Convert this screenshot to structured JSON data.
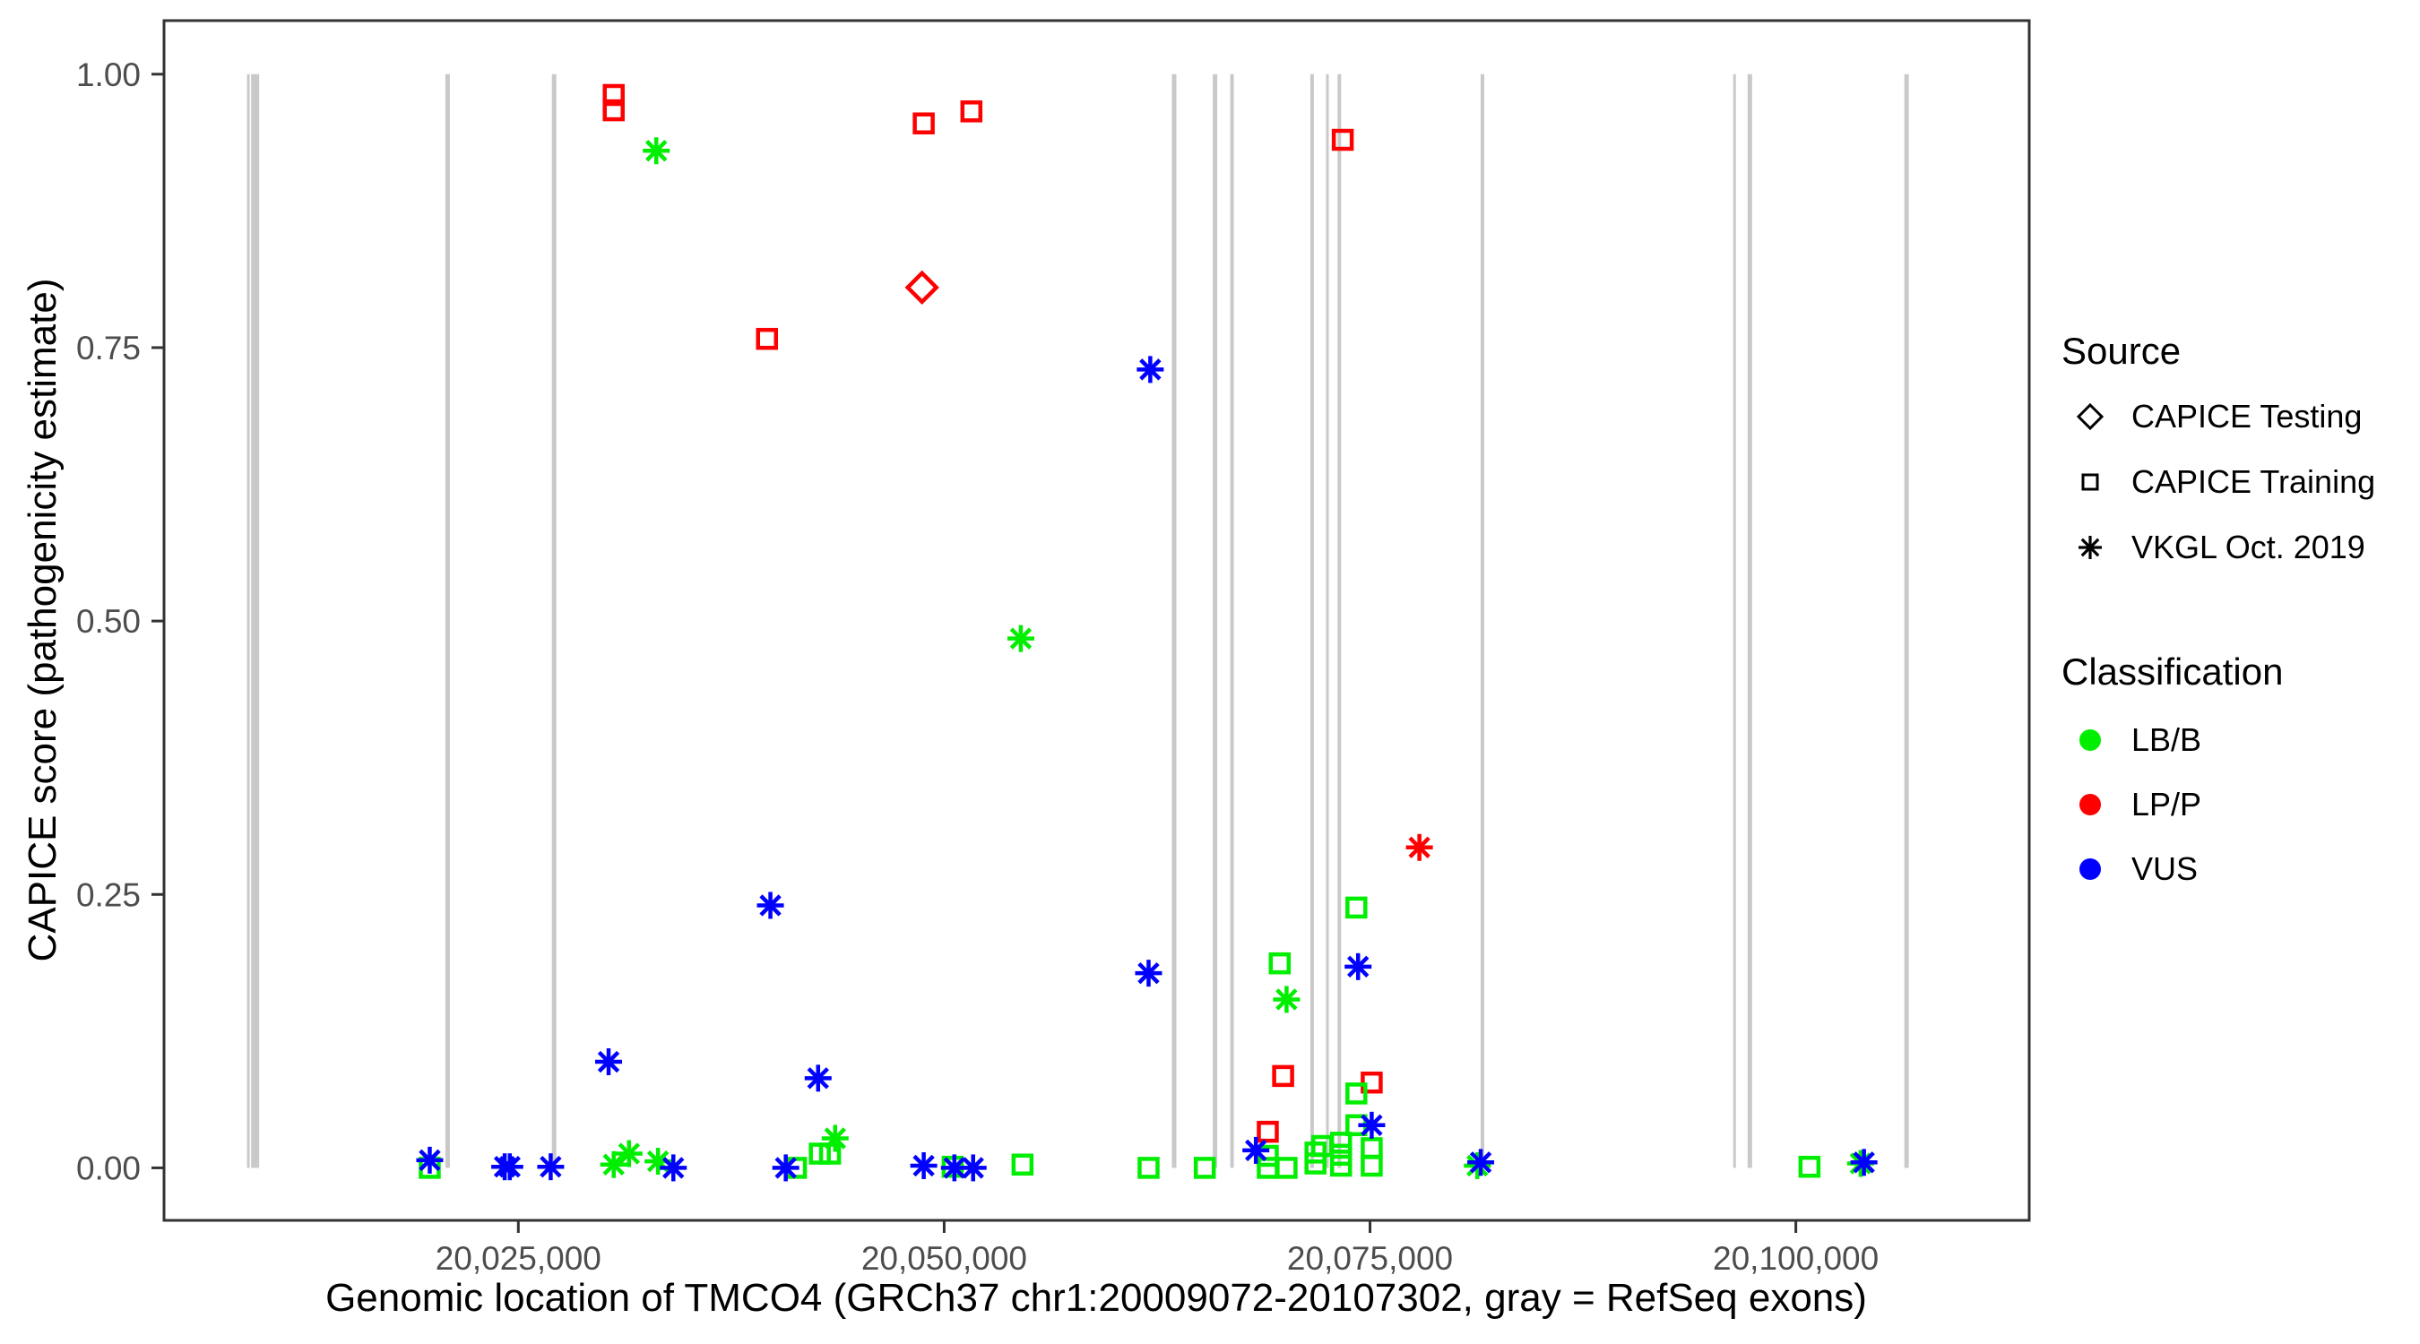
{
  "figure": {
    "x_axis": {
      "label": "Genomic location of TMCO4 (GRCh37 chr1:20009072-20107302, gray = RefSeq exons)",
      "ticks": [
        {
          "label": "20,025,000",
          "value": 20025000
        },
        {
          "label": "20,050,000",
          "value": 20050000
        },
        {
          "label": "20,075,000",
          "value": 20075000
        },
        {
          "label": "20,100,000",
          "value": 20100000
        }
      ]
    },
    "y_axis": {
      "label": "CAPICE score (pathogenicity estimate)",
      "ticks": [
        {
          "label": "0.00",
          "value": 0.0
        },
        {
          "label": "0.25",
          "value": 0.25
        },
        {
          "label": "0.50",
          "value": 0.5
        },
        {
          "label": "0.75",
          "value": 0.75
        },
        {
          "label": "1.00",
          "value": 1.0
        }
      ]
    },
    "legend": {
      "source": {
        "title": "Source",
        "items": [
          {
            "label": "CAPICE Testing",
            "shape": "diamond"
          },
          {
            "label": "CAPICE Training",
            "shape": "square"
          },
          {
            "label": "VKGL Oct. 2019",
            "shape": "asterisk"
          }
        ]
      },
      "classification": {
        "title": "Classification",
        "items": [
          {
            "label": "LB/B",
            "color": "#00EE00"
          },
          {
            "label": "LP/P",
            "color": "#FF0000"
          },
          {
            "label": "VUS",
            "color": "#0000FF"
          }
        ]
      }
    },
    "colors": {
      "LB/B": "#00EE00",
      "LP/P": "#FF0000",
      "VUS": "#0000FF",
      "exon": "#C9C9C9",
      "axis": "#333333",
      "tick_label": "#4D4D4D"
    }
  },
  "chart_data": {
    "type": "scatter",
    "title": "",
    "xlabel": "Genomic location of TMCO4 (GRCh37 chr1:20009072-20107302, gray = RefSeq exons)",
    "ylabel": "CAPICE score (pathogenicity estimate)",
    "x_range": [
      20004200,
      20113700
    ],
    "y_range": [
      -0.048,
      1.049
    ],
    "grid": false,
    "legend_position": "right",
    "source_shapes": {
      "CAPICE Testing": "diamond",
      "CAPICE Training": "square",
      "VKGL Oct. 2019": "asterisk"
    },
    "exons": [
      {
        "x": 20009150,
        "w": 3
      },
      {
        "x": 20009550,
        "w": 9
      },
      {
        "x": 20020850,
        "w": 5
      },
      {
        "x": 20027100,
        "w": 5
      },
      {
        "x": 20063500,
        "w": 5
      },
      {
        "x": 20065900,
        "w": 5
      },
      {
        "x": 20066900,
        "w": 4
      },
      {
        "x": 20071600,
        "w": 4
      },
      {
        "x": 20072500,
        "w": 3
      },
      {
        "x": 20073200,
        "w": 4
      },
      {
        "x": 20081600,
        "w": 4
      },
      {
        "x": 20096400,
        "w": 3
      },
      {
        "x": 20097300,
        "w": 5
      },
      {
        "x": 20106500,
        "w": 5
      }
    ],
    "points": [
      {
        "x": 20030600,
        "y": 0.981,
        "source": "CAPICE Training",
        "class": "LP/P"
      },
      {
        "x": 20030600,
        "y": 0.967,
        "source": "CAPICE Training",
        "class": "LP/P"
      },
      {
        "x": 20048800,
        "y": 0.955,
        "source": "CAPICE Training",
        "class": "LP/P"
      },
      {
        "x": 20051600,
        "y": 0.966,
        "source": "CAPICE Training",
        "class": "LP/P"
      },
      {
        "x": 20073400,
        "y": 0.94,
        "source": "CAPICE Training",
        "class": "LP/P"
      },
      {
        "x": 20048700,
        "y": 0.805,
        "source": "CAPICE Testing",
        "class": "LP/P"
      },
      {
        "x": 20039600,
        "y": 0.758,
        "source": "CAPICE Training",
        "class": "LP/P"
      },
      {
        "x": 20077900,
        "y": 0.293,
        "source": "VKGL Oct. 2019",
        "class": "LP/P"
      },
      {
        "x": 20069900,
        "y": 0.084,
        "source": "CAPICE Training",
        "class": "LP/P"
      },
      {
        "x": 20075100,
        "y": 0.078,
        "source": "CAPICE Training",
        "class": "LP/P"
      },
      {
        "x": 20069000,
        "y": 0.033,
        "source": "CAPICE Training",
        "class": "LP/P"
      },
      {
        "x": 20033100,
        "y": 0.93,
        "source": "VKGL Oct. 2019",
        "class": "LB/B"
      },
      {
        "x": 20054500,
        "y": 0.484,
        "source": "VKGL Oct. 2019",
        "class": "LB/B"
      },
      {
        "x": 20074200,
        "y": 0.238,
        "source": "CAPICE Training",
        "class": "LB/B"
      },
      {
        "x": 20069700,
        "y": 0.187,
        "source": "CAPICE Training",
        "class": "LB/B"
      },
      {
        "x": 20070100,
        "y": 0.154,
        "source": "VKGL Oct. 2019",
        "class": "LB/B"
      },
      {
        "x": 20074200,
        "y": 0.068,
        "source": "CAPICE Training",
        "class": "LB/B"
      },
      {
        "x": 20074200,
        "y": 0.039,
        "source": "CAPICE Training",
        "class": "LB/B"
      },
      {
        "x": 20069000,
        "y": 0.011,
        "source": "CAPICE Training",
        "class": "LB/B"
      },
      {
        "x": 20069000,
        "y": 0.0,
        "source": "CAPICE Training",
        "class": "LB/B"
      },
      {
        "x": 20070100,
        "y": 0.0,
        "source": "CAPICE Training",
        "class": "LB/B"
      },
      {
        "x": 20071800,
        "y": 0.014,
        "source": "CAPICE Training",
        "class": "LB/B"
      },
      {
        "x": 20071800,
        "y": 0.004,
        "source": "CAPICE Training",
        "class": "LB/B"
      },
      {
        "x": 20072200,
        "y": 0.02,
        "source": "CAPICE Training",
        "class": "LB/B"
      },
      {
        "x": 20073300,
        "y": 0.023,
        "source": "CAPICE Training",
        "class": "LB/B"
      },
      {
        "x": 20073300,
        "y": 0.012,
        "source": "CAPICE Training",
        "class": "LB/B"
      },
      {
        "x": 20073300,
        "y": 0.002,
        "source": "CAPICE Training",
        "class": "LB/B"
      },
      {
        "x": 20075100,
        "y": 0.018,
        "source": "CAPICE Training",
        "class": "LB/B"
      },
      {
        "x": 20075100,
        "y": 0.002,
        "source": "CAPICE Training",
        "class": "LB/B"
      },
      {
        "x": 20081300,
        "y": 0.002,
        "source": "VKGL Oct. 2019",
        "class": "LB/B"
      },
      {
        "x": 20062000,
        "y": 0.0,
        "source": "CAPICE Training",
        "class": "LB/B"
      },
      {
        "x": 20065300,
        "y": 0.0,
        "source": "CAPICE Training",
        "class": "LB/B"
      },
      {
        "x": 20019800,
        "y": 0.0,
        "source": "CAPICE Training",
        "class": "LB/B"
      },
      {
        "x": 20030600,
        "y": 0.003,
        "source": "VKGL Oct. 2019",
        "class": "LB/B"
      },
      {
        "x": 20031500,
        "y": 0.013,
        "source": "VKGL Oct. 2019",
        "class": "LB/B"
      },
      {
        "x": 20033200,
        "y": 0.006,
        "source": "VKGL Oct. 2019",
        "class": "LB/B"
      },
      {
        "x": 20041300,
        "y": 0.0,
        "source": "CAPICE Training",
        "class": "LB/B"
      },
      {
        "x": 20042700,
        "y": 0.013,
        "source": "CAPICE Training",
        "class": "LB/B"
      },
      {
        "x": 20043300,
        "y": 0.013,
        "source": "CAPICE Training",
        "class": "LB/B"
      },
      {
        "x": 20043600,
        "y": 0.027,
        "source": "VKGL Oct. 2019",
        "class": "LB/B"
      },
      {
        "x": 20050500,
        "y": 0.001,
        "source": "CAPICE Training",
        "class": "LB/B"
      },
      {
        "x": 20054600,
        "y": 0.003,
        "source": "CAPICE Training",
        "class": "LB/B"
      },
      {
        "x": 20100800,
        "y": 0.001,
        "source": "CAPICE Training",
        "class": "LB/B"
      },
      {
        "x": 20103800,
        "y": 0.004,
        "source": "VKGL Oct. 2019",
        "class": "LB/B"
      },
      {
        "x": 20062100,
        "y": 0.73,
        "source": "VKGL Oct. 2019",
        "class": "VUS"
      },
      {
        "x": 20039800,
        "y": 0.24,
        "source": "VKGL Oct. 2019",
        "class": "VUS"
      },
      {
        "x": 20062000,
        "y": 0.178,
        "source": "VKGL Oct. 2019",
        "class": "VUS"
      },
      {
        "x": 20074300,
        "y": 0.184,
        "source": "VKGL Oct. 2019",
        "class": "VUS"
      },
      {
        "x": 20030300,
        "y": 0.097,
        "source": "VKGL Oct. 2019",
        "class": "VUS"
      },
      {
        "x": 20042600,
        "y": 0.082,
        "source": "VKGL Oct. 2019",
        "class": "VUS"
      },
      {
        "x": 20075100,
        "y": 0.039,
        "source": "VKGL Oct. 2019",
        "class": "VUS"
      },
      {
        "x": 20068300,
        "y": 0.016,
        "source": "VKGL Oct. 2019",
        "class": "VUS"
      },
      {
        "x": 20019800,
        "y": 0.007,
        "source": "VKGL Oct. 2019",
        "class": "VUS"
      },
      {
        "x": 20024200,
        "y": 0.001,
        "source": "VKGL Oct. 2019",
        "class": "VUS"
      },
      {
        "x": 20024500,
        "y": 0.001,
        "source": "VKGL Oct. 2019",
        "class": "VUS"
      },
      {
        "x": 20026900,
        "y": 0.001,
        "source": "VKGL Oct. 2019",
        "class": "VUS"
      },
      {
        "x": 20034100,
        "y": 0.0,
        "source": "VKGL Oct. 2019",
        "class": "VUS"
      },
      {
        "x": 20040700,
        "y": 0.0,
        "source": "VKGL Oct. 2019",
        "class": "VUS"
      },
      {
        "x": 20048800,
        "y": 0.002,
        "source": "VKGL Oct. 2019",
        "class": "VUS"
      },
      {
        "x": 20050600,
        "y": 0.0,
        "source": "VKGL Oct. 2019",
        "class": "VUS"
      },
      {
        "x": 20051700,
        "y": 0.0,
        "source": "VKGL Oct. 2019",
        "class": "VUS"
      },
      {
        "x": 20081500,
        "y": 0.005,
        "source": "VKGL Oct. 2019",
        "class": "VUS"
      },
      {
        "x": 20104000,
        "y": 0.005,
        "source": "VKGL Oct. 2019",
        "class": "VUS"
      }
    ]
  }
}
